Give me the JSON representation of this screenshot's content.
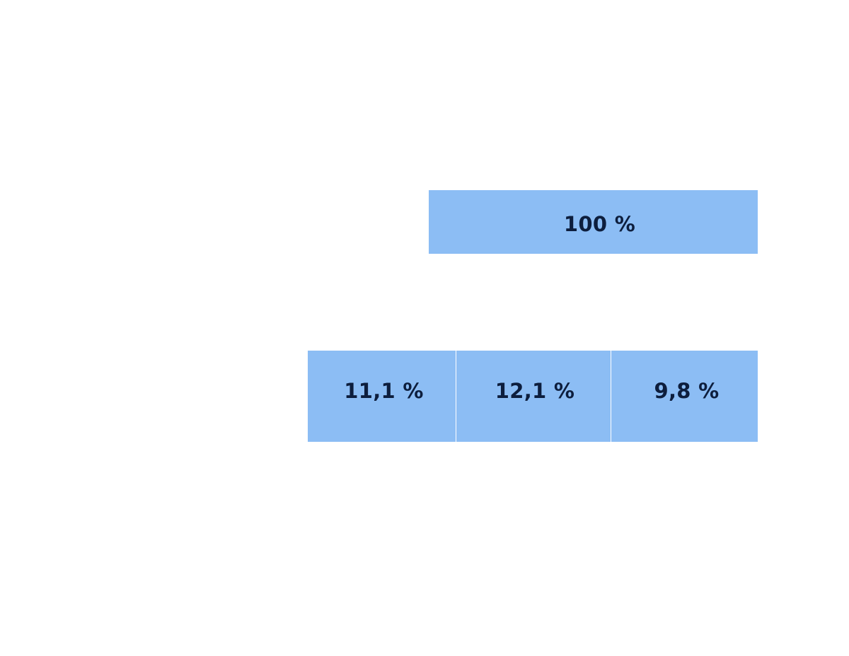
{
  "colors": {
    "cell_fill": "#8cbdf4",
    "label_text": "#0d1e3d",
    "background": "#ffffff"
  },
  "total": {
    "label": "100 %"
  },
  "parts": [
    {
      "label": "11,1 %"
    },
    {
      "label": "12,1 %"
    },
    {
      "label": "9,8 %"
    }
  ]
}
